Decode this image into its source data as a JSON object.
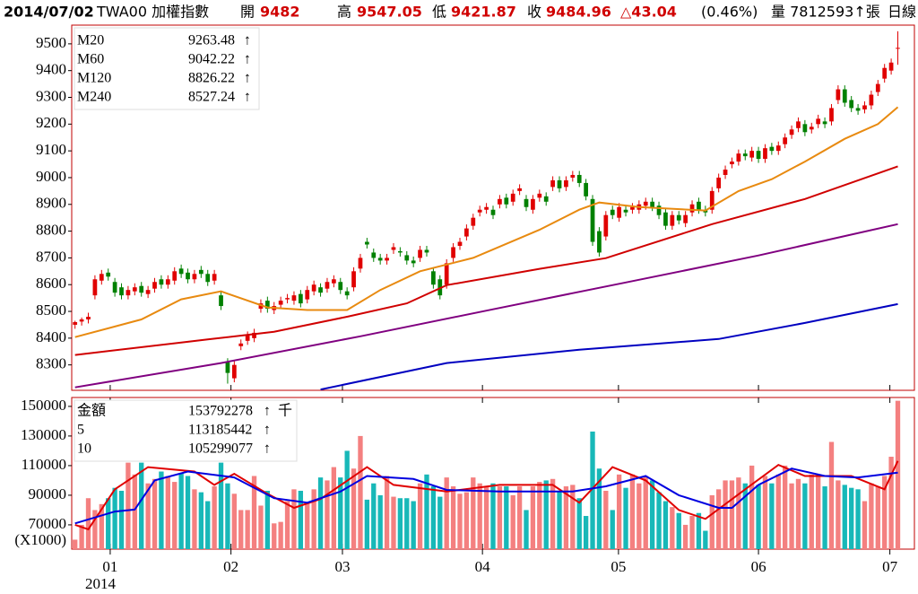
{
  "chart_data": {
    "type": "candlestick",
    "header": {
      "date": "2014/07/02",
      "symbol": "TWA00 加權指數",
      "open_label": "開",
      "high_label": "高",
      "low_label": "低",
      "close_label": "收",
      "change": "△43.04",
      "change_pct": "(0.46%)",
      "volume_text": "量 7812593↑張",
      "period": "日線"
    },
    "up_color": "#e00000",
    "down_color": "#008000",
    "xlim": [
      -0.5,
      126.5
    ],
    "xticks": [
      {
        "value": 5.3,
        "label": "01"
      },
      {
        "value": 23.5,
        "label": "02"
      },
      {
        "value": 40.3,
        "label": "03"
      },
      {
        "value": 61.4,
        "label": "04"
      },
      {
        "value": 81.9,
        "label": "05"
      },
      {
        "value": 103,
        "label": "06"
      },
      {
        "value": 122.8,
        "label": "07"
      }
    ],
    "year_label": "2014",
    "ylim": [
      8205,
      9570
    ],
    "yticks": [
      8300,
      8400,
      8500,
      8600,
      8700,
      8800,
      8900,
      9000,
      9100,
      9200,
      9300,
      9400,
      9500
    ],
    "open": [
      8450,
      8462,
      8470,
      8560,
      8615,
      8645,
      8610,
      8590,
      8560,
      8575,
      8595,
      8565,
      8585,
      8620,
      8600,
      8615,
      8660,
      8645,
      8620,
      8655,
      8640,
      8615,
      8560,
      8310,
      8250,
      8370,
      8390,
      8400,
      8510,
      8540,
      8505,
      8525,
      8545,
      8540,
      8565,
      8545,
      8575,
      8590,
      8585,
      8605,
      8610,
      8575,
      8590,
      8660,
      8760,
      8720,
      8700,
      8690,
      8730,
      8725,
      8710,
      8690,
      8700,
      8730,
      8650,
      8620,
      8600,
      8700,
      8745,
      8780,
      8820,
      8870,
      8880,
      8880,
      8900,
      8925,
      8910,
      8950,
      8920,
      8880,
      8925,
      8930,
      8965,
      8990,
      8965,
      9000,
      9010,
      8980,
      8920,
      8800,
      8780,
      8880,
      8850,
      8880,
      8880,
      8880,
      8895,
      8910,
      8895,
      8870,
      8820,
      8860,
      8830,
      8870,
      8910,
      8880,
      8880,
      8960,
      9010,
      9050,
      9060,
      9090,
      9075,
      9100,
      9070,
      9115,
      9100,
      9125,
      9160,
      9185,
      9200,
      9180,
      9200,
      9210,
      9210,
      9290,
      9330,
      9290,
      9260,
      9255,
      9270,
      9320,
      9370,
      9400,
      9482
    ],
    "high": [
      8465,
      8477,
      8495,
      8635,
      8655,
      8660,
      8625,
      8605,
      8595,
      8605,
      8610,
      8595,
      8625,
      8635,
      8635,
      8665,
      8675,
      8660,
      8655,
      8670,
      8655,
      8655,
      8575,
      8325,
      8315,
      8395,
      8425,
      8435,
      8545,
      8555,
      8535,
      8555,
      8565,
      8575,
      8580,
      8595,
      8615,
      8605,
      8625,
      8635,
      8625,
      8590,
      8665,
      8715,
      8775,
      8735,
      8715,
      8715,
      8755,
      8740,
      8725,
      8705,
      8745,
      8745,
      8665,
      8635,
      8695,
      8755,
      8775,
      8825,
      8865,
      8895,
      8905,
      8895,
      8935,
      8940,
      8955,
      8975,
      8935,
      8935,
      8955,
      8945,
      9005,
      9005,
      9005,
      9025,
      9025,
      8995,
      8935,
      8815,
      8875,
      8895,
      8905,
      8895,
      8905,
      8915,
      8925,
      8925,
      8910,
      8885,
      8875,
      8875,
      8875,
      8915,
      8925,
      8895,
      8965,
      9015,
      9045,
      9075,
      9105,
      9105,
      9115,
      9115,
      9125,
      9130,
      9135,
      9165,
      9195,
      9225,
      9215,
      9205,
      9235,
      9225,
      9275,
      9345,
      9345,
      9305,
      9275,
      9285,
      9325,
      9365,
      9425,
      9445,
      9547.05
    ],
    "low": [
      8435,
      8447,
      8455,
      8545,
      8600,
      8615,
      8555,
      8545,
      8545,
      8560,
      8555,
      8550,
      8570,
      8585,
      8585,
      8600,
      8625,
      8605,
      8605,
      8625,
      8595,
      8600,
      8505,
      8230,
      8235,
      8355,
      8375,
      8385,
      8495,
      8495,
      8490,
      8510,
      8530,
      8525,
      8515,
      8530,
      8560,
      8555,
      8570,
      8590,
      8565,
      8545,
      8575,
      8645,
      8735,
      8685,
      8675,
      8675,
      8715,
      8705,
      8675,
      8665,
      8685,
      8705,
      8585,
      8545,
      8585,
      8685,
      8730,
      8765,
      8805,
      8855,
      8865,
      8845,
      8885,
      8885,
      8895,
      8935,
      8875,
      8865,
      8910,
      8895,
      8950,
      8945,
      8950,
      8985,
      8965,
      8915,
      8745,
      8705,
      8765,
      8845,
      8835,
      8855,
      8865,
      8865,
      8880,
      8875,
      8845,
      8805,
      8805,
      8825,
      8815,
      8855,
      8865,
      8855,
      8865,
      8945,
      8995,
      9035,
      9045,
      9065,
      9060,
      9055,
      9055,
      9085,
      9085,
      9110,
      9145,
      9170,
      9155,
      9165,
      9185,
      9185,
      9195,
      9275,
      9265,
      9245,
      9235,
      9240,
      9255,
      9305,
      9355,
      9385,
      9421.87
    ],
    "close": [
      8460,
      8470,
      8480,
      8620,
      8640,
      8630,
      8570,
      8560,
      8580,
      8590,
      8570,
      8580,
      8610,
      8600,
      8620,
      8650,
      8640,
      8620,
      8640,
      8640,
      8610,
      8640,
      8520,
      8270,
      8300,
      8380,
      8410,
      8420,
      8530,
      8510,
      8520,
      8540,
      8550,
      8560,
      8530,
      8580,
      8600,
      8570,
      8610,
      8620,
      8580,
      8560,
      8650,
      8700,
      8750,
      8700,
      8690,
      8700,
      8740,
      8720,
      8690,
      8680,
      8730,
      8720,
      8600,
      8560,
      8680,
      8740,
      8760,
      8810,
      8850,
      8880,
      8890,
      8860,
      8920,
      8900,
      8940,
      8960,
      8890,
      8920,
      8940,
      8910,
      8990,
      8960,
      8990,
      9010,
      8980,
      8930,
      8760,
      8720,
      8860,
      8860,
      8890,
      8870,
      8890,
      8900,
      8910,
      8890,
      8860,
      8820,
      8860,
      8840,
      8860,
      8900,
      8880,
      8870,
      8950,
      9000,
      9030,
      9060,
      9090,
      9080,
      9100,
      9070,
      9110,
      9100,
      9120,
      9150,
      9180,
      9210,
      9170,
      9190,
      9220,
      9200,
      9260,
      9330,
      9280,
      9260,
      9250,
      9270,
      9310,
      9350,
      9410,
      9430,
      9484.96
    ],
    "arrow": "↑",
    "moving_averages": [
      {
        "name": "M20",
        "color": "#e88a10",
        "x": [
          0,
          10,
          16,
          22,
          29,
          35,
          41,
          46,
          52,
          60,
          70,
          76,
          79,
          85,
          95,
          100,
          105,
          110,
          116,
          121,
          124
        ],
        "values": [
          8404,
          8470,
          8545,
          8575,
          8515,
          8505,
          8505,
          8580,
          8650,
          8700,
          8805,
          8880,
          8907,
          8890,
          8877,
          8950,
          8994,
          9060,
          9145,
          9200,
          9263.48
        ]
      },
      {
        "name": "M60",
        "color": "#d00000",
        "x": [
          0,
          20,
          30,
          41,
          50,
          56,
          70,
          80,
          96,
          110,
          124
        ],
        "values": [
          8337,
          8395,
          8424,
          8480,
          8530,
          8598,
          8659,
          8699,
          8826,
          8920,
          9042.22
        ]
      },
      {
        "name": "M120",
        "color": "#800080",
        "x": [
          0,
          22,
          43,
          63,
          83,
          103,
          124
        ],
        "values": [
          8216,
          8307,
          8407,
          8508,
          8608,
          8709,
          8826.22
        ]
      },
      {
        "name": "M240",
        "color": "#0000c0",
        "x": [
          37,
          56,
          76,
          97,
          110,
          124
        ],
        "values": [
          8208,
          8307,
          8357,
          8397,
          8457,
          8527.24
        ]
      }
    ],
    "volume": {
      "up_color": "#f48080",
      "down_color": "#18b8b8",
      "ylim": [
        53600,
        156000
      ],
      "yticks": [
        70000,
        90000,
        110000,
        130000,
        150000
      ],
      "unit_label": "(X1000)",
      "values": [
        60000,
        70000,
        88000,
        80000,
        84000,
        88000,
        95000,
        93000,
        112000,
        104000,
        112000,
        98000,
        101000,
        106000,
        103000,
        99000,
        105000,
        103000,
        94000,
        92000,
        86000,
        96000,
        112000,
        98000,
        91000,
        80000,
        80000,
        103000,
        83000,
        93000,
        71000,
        72000,
        86000,
        94000,
        93000,
        85000,
        94000,
        102000,
        100000,
        109000,
        102000,
        120000,
        108000,
        130000,
        87000,
        98000,
        90000,
        103000,
        89000,
        88000,
        88000,
        86000,
        98000,
        104000,
        96000,
        89000,
        102000,
        96000,
        91000,
        92000,
        102000,
        98000,
        96000,
        98000,
        96000,
        96000,
        90000,
        96000,
        80000,
        96000,
        99000,
        100000,
        101000,
        93000,
        96000,
        97000,
        88000,
        76000,
        133000,
        108000,
        93000,
        80000,
        104000,
        95000,
        104000,
        98000,
        103000,
        100000,
        92000,
        86000,
        82000,
        78000,
        70000,
        76000,
        78000,
        66000,
        90000,
        94000,
        100000,
        100000,
        102000,
        98000,
        110000,
        97000,
        103000,
        98000,
        104000,
        110000,
        98000,
        101000,
        98000,
        104000,
        103000,
        96000,
        126000,
        100000,
        97000,
        95000,
        94000,
        86000,
        98000,
        96000,
        103000,
        116000,
        153792
      ],
      "legend": {
        "name": "金額",
        "value": "153792278",
        "arrow": "↑",
        "unit": "千"
      },
      "moving_averages": [
        {
          "name": "5",
          "color": "#e00000",
          "legend_value": "113185442",
          "x": [
            0,
            2,
            6,
            11,
            18,
            21,
            24,
            29,
            33,
            37,
            44,
            48,
            56,
            64,
            72,
            76,
            81,
            86,
            91,
            95,
            101,
            106,
            110,
            117,
            122,
            124
          ],
          "values": [
            70000,
            67000,
            94000,
            109000,
            106000,
            97000,
            104500,
            91000,
            81500,
            87500,
            109000,
            97000,
            92500,
            97000,
            97000,
            85000,
            109000,
            100000,
            80000,
            74000,
            94000,
            110500,
            103000,
            103000,
            94000,
            113185
          ]
        },
        {
          "name": "10",
          "color": "#0000e0",
          "legend_value": "105299077",
          "x": [
            0,
            6,
            9,
            12,
            17,
            24,
            30,
            35,
            40,
            44,
            51,
            56,
            64,
            75,
            80,
            86,
            91,
            97,
            99,
            103,
            108,
            113,
            118,
            124
          ],
          "values": [
            71000,
            79000,
            80300,
            100000,
            106000,
            102000,
            88000,
            85000,
            92500,
            103000,
            101000,
            93600,
            92500,
            92500,
            96000,
            103000,
            90000,
            81500,
            81500,
            97000,
            108000,
            103000,
            102000,
            105299
          ]
        }
      ]
    }
  }
}
